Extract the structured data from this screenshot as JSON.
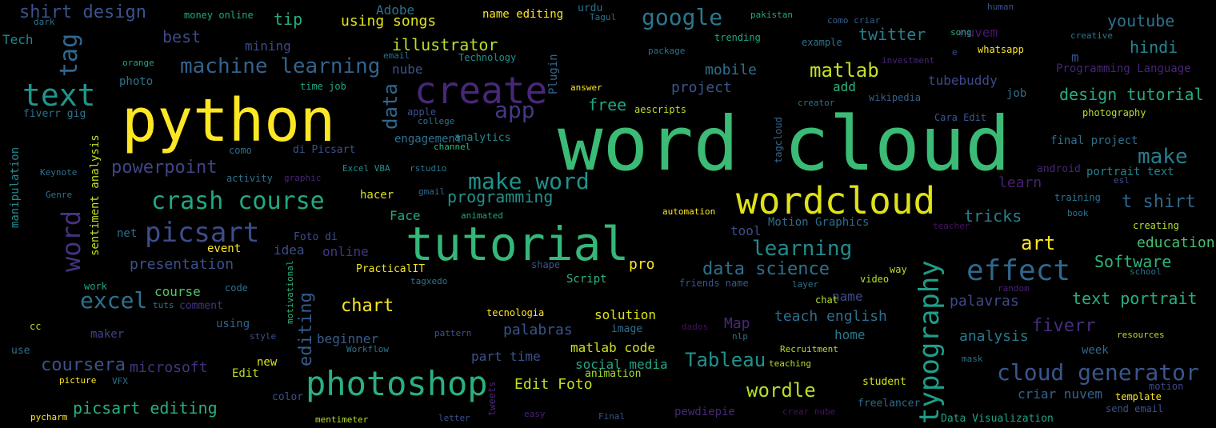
{
  "words": [
    {
      "text": "word cloud",
      "color": "#3bbb75"
    },
    {
      "text": "python",
      "color": "#fde725"
    },
    {
      "text": "tutorial",
      "color": "#35b779"
    },
    {
      "text": "create",
      "color": "#482777"
    },
    {
      "text": "wordcloud",
      "color": "#e0e21a"
    },
    {
      "text": "photoshop",
      "color": "#2ab07f"
    },
    {
      "text": "text",
      "color": "#1f968b"
    },
    {
      "text": "picsart",
      "color": "#3e4c8a"
    },
    {
      "text": "effect",
      "color": "#30678d"
    },
    {
      "text": "crash course",
      "color": "#22a884"
    },
    {
      "text": "machine learning",
      "color": "#33638d"
    },
    {
      "text": "make word",
      "color": "#20928c"
    },
    {
      "text": "typography",
      "color": "#1f9e89"
    },
    {
      "text": "cloud generator",
      "color": "#39568c"
    },
    {
      "text": "google",
      "color": "#2a788e"
    },
    {
      "text": "excel",
      "color": "#2c728e"
    },
    {
      "text": "word",
      "color": "#46327e"
    },
    {
      "text": "tag",
      "color": "#31688e"
    },
    {
      "text": "learning",
      "color": "#238a8d"
    },
    {
      "text": "data science",
      "color": "#2d708e"
    },
    {
      "text": "chart",
      "color": "#f8e621"
    },
    {
      "text": "Tableau",
      "color": "#21918c"
    },
    {
      "text": "wordle",
      "color": "#b5de2b"
    },
    {
      "text": "make",
      "color": "#287d8e"
    },
    {
      "text": "art",
      "color": "#fde725"
    },
    {
      "text": "matlab",
      "color": "#c8e020"
    },
    {
      "text": "powerpoint",
      "color": "#414487"
    },
    {
      "text": "coursera",
      "color": "#3b528b"
    },
    {
      "text": "app",
      "color": "#443983"
    },
    {
      "text": "shirt design",
      "color": "#3b528b"
    },
    {
      "text": "twitter",
      "color": "#27808e"
    },
    {
      "text": "youtube",
      "color": "#2c728e"
    },
    {
      "text": "design tutorial",
      "color": "#25ac82"
    },
    {
      "text": "text portrait",
      "color": "#29af7f"
    },
    {
      "text": "t shirt",
      "color": "#31688e"
    },
    {
      "text": "hindi",
      "color": "#25858e"
    },
    {
      "text": "fiverr",
      "color": "#472d7b"
    },
    {
      "text": "programming",
      "color": "#21918c"
    },
    {
      "text": "picsart editing",
      "color": "#29af7f"
    },
    {
      "text": "editing",
      "color": "#365c8d"
    },
    {
      "text": "presentation",
      "color": "#3b528b"
    },
    {
      "text": "data",
      "color": "#31688e"
    },
    {
      "text": "tricks",
      "color": "#277f8e"
    },
    {
      "text": "palavras",
      "color": "#3e4a89"
    },
    {
      "text": "Software",
      "color": "#2fb47c"
    },
    {
      "text": "education",
      "color": "#44bf70"
    },
    {
      "text": "illustrator",
      "color": "#b8de29"
    },
    {
      "text": "microsoft",
      "color": "#46337f"
    },
    {
      "text": "teach english",
      "color": "#2e6e8e"
    },
    {
      "text": "analysis",
      "color": "#2a788e"
    },
    {
      "text": "palabras",
      "color": "#39558c"
    },
    {
      "text": "free",
      "color": "#21a685"
    },
    {
      "text": "project",
      "color": "#3a548c"
    },
    {
      "text": "best",
      "color": "#3f4889"
    },
    {
      "text": "mobile",
      "color": "#2e6f8e"
    },
    {
      "text": "learn",
      "color": "#481f70"
    },
    {
      "text": "using songs",
      "color": "#e2e418"
    },
    {
      "text": "Edit Foto",
      "color": "#c0df25"
    },
    {
      "text": "matlab code",
      "color": "#d0e11c"
    },
    {
      "text": "solution",
      "color": "#dde318"
    },
    {
      "text": "social media",
      "color": "#21a685"
    },
    {
      "text": "part time",
      "color": "#3b528b"
    },
    {
      "text": "course",
      "color": "#54c568"
    },
    {
      "text": "criar nuvem",
      "color": "#33638d"
    },
    {
      "text": "beginner",
      "color": "#365d8d"
    },
    {
      "text": "pro",
      "color": "#fde725"
    },
    {
      "text": "tip",
      "color": "#25ac82"
    },
    {
      "text": "Map",
      "color": "#482878"
    },
    {
      "text": "tool",
      "color": "#3d4e8a"
    },
    {
      "text": "idea",
      "color": "#3e4c8a"
    },
    {
      "text": "online",
      "color": "#453581"
    },
    {
      "text": "Face",
      "color": "#22a884"
    },
    {
      "text": "hacer",
      "color": "#d8e219"
    },
    {
      "text": "nube",
      "color": "#3b528b"
    },
    {
      "text": "Adobe",
      "color": "#2d708e"
    },
    {
      "text": "mining",
      "color": "#3f4788"
    },
    {
      "text": "photo",
      "color": "#2b758e"
    },
    {
      "text": "home",
      "color": "#2a788e"
    },
    {
      "text": "name",
      "color": "#3e4c8a"
    },
    {
      "text": "net",
      "color": "#2e6e8e"
    },
    {
      "text": "nuvem",
      "color": "#481668"
    },
    {
      "text": "add",
      "color": "#2fb47c"
    },
    {
      "text": "maker",
      "color": "#414487"
    },
    {
      "text": "using",
      "color": "#33638d"
    },
    {
      "text": "Edit",
      "color": "#bade28"
    },
    {
      "text": "new",
      "color": "#dae319"
    },
    {
      "text": "Tech",
      "color": "#25858e"
    },
    {
      "text": "Plugin",
      "color": "#31688e"
    },
    {
      "text": "Motion Graphics",
      "color": "#2f6c8e"
    },
    {
      "text": "Programming Language",
      "color": "#482475"
    },
    {
      "text": "m",
      "color": "#39568c"
    },
    {
      "text": "job",
      "color": "#2e6e8e"
    },
    {
      "text": "sentiment analysis",
      "color": "#c2df23"
    },
    {
      "text": "manipulation",
      "color": "#23898e"
    },
    {
      "text": "di Picsart",
      "color": "#3b528b"
    },
    {
      "text": "event",
      "color": "#fde725"
    },
    {
      "text": "Script",
      "color": "#2fb47c"
    },
    {
      "text": "name editing",
      "color": "#fde725"
    },
    {
      "text": "engagement",
      "color": "#2c738e"
    },
    {
      "text": "fiverr gig",
      "color": "#2c738e"
    },
    {
      "text": "comment",
      "color": "#453581"
    },
    {
      "text": "image",
      "color": "#2e6f8e"
    },
    {
      "text": "animation",
      "color": "#a5db36"
    },
    {
      "text": "Foto di",
      "color": "#3e4c8a"
    },
    {
      "text": "tubebuddy",
      "color": "#3e4989"
    },
    {
      "text": "week",
      "color": "#31688e"
    },
    {
      "text": "final project",
      "color": "#2d708e"
    },
    {
      "text": "portrait text",
      "color": "#26828e"
    },
    {
      "text": "analytics",
      "color": "#24878e"
    },
    {
      "text": "PracticalIT",
      "color": "#f1e51d"
    },
    {
      "text": "Data Visualization",
      "color": "#20a386"
    },
    {
      "text": "motion",
      "color": "#3f4889"
    },
    {
      "text": "template",
      "color": "#fde725"
    },
    {
      "text": "send email",
      "color": "#3b528b"
    },
    {
      "text": "pewdiepie",
      "color": "#482777"
    },
    {
      "text": "freelancer",
      "color": "#30698e"
    },
    {
      "text": "student",
      "color": "#d2e21b"
    },
    {
      "text": "money online",
      "color": "#21a685"
    },
    {
      "text": "trending",
      "color": "#21a685"
    },
    {
      "text": "example",
      "color": "#2c728e"
    },
    {
      "text": "wikipedia",
      "color": "#35608d"
    },
    {
      "text": "Technology",
      "color": "#21918c"
    },
    {
      "text": "creator",
      "color": "#2d708e"
    },
    {
      "text": "como criar",
      "color": "#365d8d"
    },
    {
      "text": "song",
      "color": "#2ab07f"
    },
    {
      "text": "whatsapp",
      "color": "#fde725"
    },
    {
      "text": "e",
      "color": "#3b528b"
    },
    {
      "text": "investment",
      "color": "#482475"
    },
    {
      "text": "creative",
      "color": "#2a788e"
    },
    {
      "text": "photography",
      "color": "#b5de2b"
    },
    {
      "text": "Cara Edit",
      "color": "#39568c"
    },
    {
      "text": "tagcloud",
      "color": "#33638d"
    },
    {
      "text": "aescripts",
      "color": "#b5de2b"
    },
    {
      "text": "apple",
      "color": "#3b528b"
    },
    {
      "text": "college",
      "color": "#2c728e"
    },
    {
      "text": "channel",
      "color": "#2fb47c"
    },
    {
      "text": "como",
      "color": "#2d708e"
    },
    {
      "text": "Excel VBA",
      "color": "#21918c"
    },
    {
      "text": "rstudio",
      "color": "#2c728e"
    },
    {
      "text": "gmail",
      "color": "#31688e"
    },
    {
      "text": "graphic",
      "color": "#482475"
    },
    {
      "text": "activity",
      "color": "#2c728e"
    },
    {
      "text": "Keynote",
      "color": "#2c728e"
    },
    {
      "text": "Genre",
      "color": "#2c728e"
    },
    {
      "text": "automation",
      "color": "#fde725"
    },
    {
      "text": "animated",
      "color": "#21a685"
    },
    {
      "text": "training",
      "color": "#2c728e"
    },
    {
      "text": "book",
      "color": "#2c728e"
    },
    {
      "text": "creating",
      "color": "#b5de2b"
    },
    {
      "text": "teacher",
      "color": "#471164"
    },
    {
      "text": "android",
      "color": "#482475"
    },
    {
      "text": "esl",
      "color": "#3b528b"
    },
    {
      "text": "school",
      "color": "#2d708e"
    },
    {
      "text": "way",
      "color": "#b5de2b"
    },
    {
      "text": "video",
      "color": "#b5de2b"
    },
    {
      "text": "friends name",
      "color": "#39568c"
    },
    {
      "text": "layer",
      "color": "#2c728e"
    },
    {
      "text": "chat",
      "color": "#b5de2b"
    },
    {
      "text": "random",
      "color": "#482475"
    },
    {
      "text": "shape",
      "color": "#3b528b"
    },
    {
      "text": "tagxedo",
      "color": "#2c728e"
    },
    {
      "text": "motivational",
      "color": "#2fb47c"
    },
    {
      "text": "code",
      "color": "#2c728e"
    },
    {
      "text": "work",
      "color": "#21a685"
    },
    {
      "text": "tuts",
      "color": "#2c728e"
    },
    {
      "text": "cc",
      "color": "#b5de2b"
    },
    {
      "text": "use",
      "color": "#2c728e"
    },
    {
      "text": "style",
      "color": "#3b528b"
    },
    {
      "text": "Workflow",
      "color": "#2c728e"
    },
    {
      "text": "pattern",
      "color": "#3b528b"
    },
    {
      "text": "dados",
      "color": "#471164"
    },
    {
      "text": "nlp",
      "color": "#2c728e"
    },
    {
      "text": "Recruitment",
      "color": "#b5de2b"
    },
    {
      "text": "teaching",
      "color": "#b5de2b"
    },
    {
      "text": "mask",
      "color": "#2d708e"
    },
    {
      "text": "resources",
      "color": "#b5de2b"
    },
    {
      "text": "picture",
      "color": "#fde725"
    },
    {
      "text": "VFX",
      "color": "#2c728e"
    },
    {
      "text": "color",
      "color": "#3b528b"
    },
    {
      "text": "tweets",
      "color": "#482475"
    },
    {
      "text": "easy",
      "color": "#482475"
    },
    {
      "text": "Final",
      "color": "#3b528b"
    },
    {
      "text": "crear nube",
      "color": "#471164"
    },
    {
      "text": "letter",
      "color": "#3b528b"
    },
    {
      "text": "mentimeter",
      "color": "#b5de2b"
    },
    {
      "text": "pycharm",
      "color": "#fde725"
    },
    {
      "text": "tecnologia",
      "color": "#fde725"
    },
    {
      "text": "urdu",
      "color": "#2c728e"
    },
    {
      "text": "Tagul",
      "color": "#2c728e"
    },
    {
      "text": "package",
      "color": "#2c728e"
    },
    {
      "text": "pakistan",
      "color": "#21a685"
    },
    {
      "text": "human",
      "color": "#3b528b"
    },
    {
      "text": "answer",
      "color": "#fde725"
    },
    {
      "text": "dark",
      "color": "#2c728e"
    },
    {
      "text": "orange",
      "color": "#21a685"
    },
    {
      "text": "email",
      "color": "#2c728e"
    },
    {
      "text": "time job",
      "color": "#21a685"
    }
  ]
}
